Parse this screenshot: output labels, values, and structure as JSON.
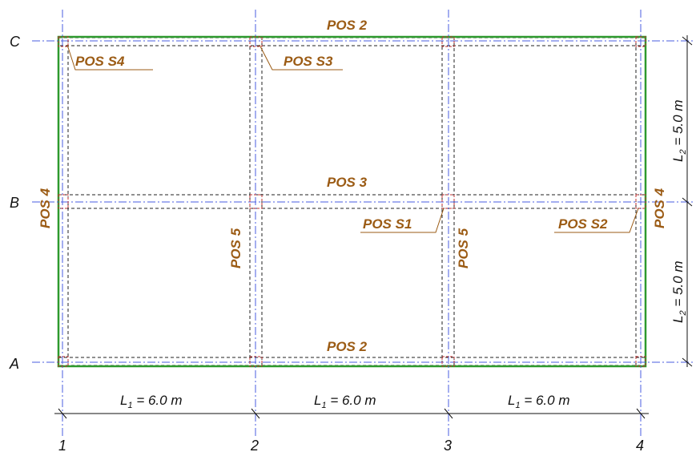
{
  "grid": {
    "rows": [
      "C",
      "B",
      "A"
    ],
    "cols": [
      "1",
      "2",
      "3",
      "4"
    ]
  },
  "labels": {
    "pos2_top": "POS 2",
    "pos2_bottom": "POS 2",
    "pos3": "POS 3",
    "pos4_left": "POS 4",
    "pos4_right": "POS 4",
    "pos5_left": "POS 5",
    "pos5_right": "POS 5",
    "s1": "POS S1",
    "s2": "POS S2",
    "s3": "POS S3",
    "s4": "POS S4"
  },
  "dims": {
    "l1_main": "L",
    "l1_sub": "1",
    "l1_value": " = 6.0 m",
    "l2_main": "L",
    "l2_sub": "2",
    "l2_value": " = 5.0 m"
  },
  "colors": {
    "slab_outline": "#2e9a2e",
    "grid_line": "#4a5ee0",
    "beam_dash": "#222222",
    "column": "#c03030",
    "pos_text": "#9b5b14"
  }
}
